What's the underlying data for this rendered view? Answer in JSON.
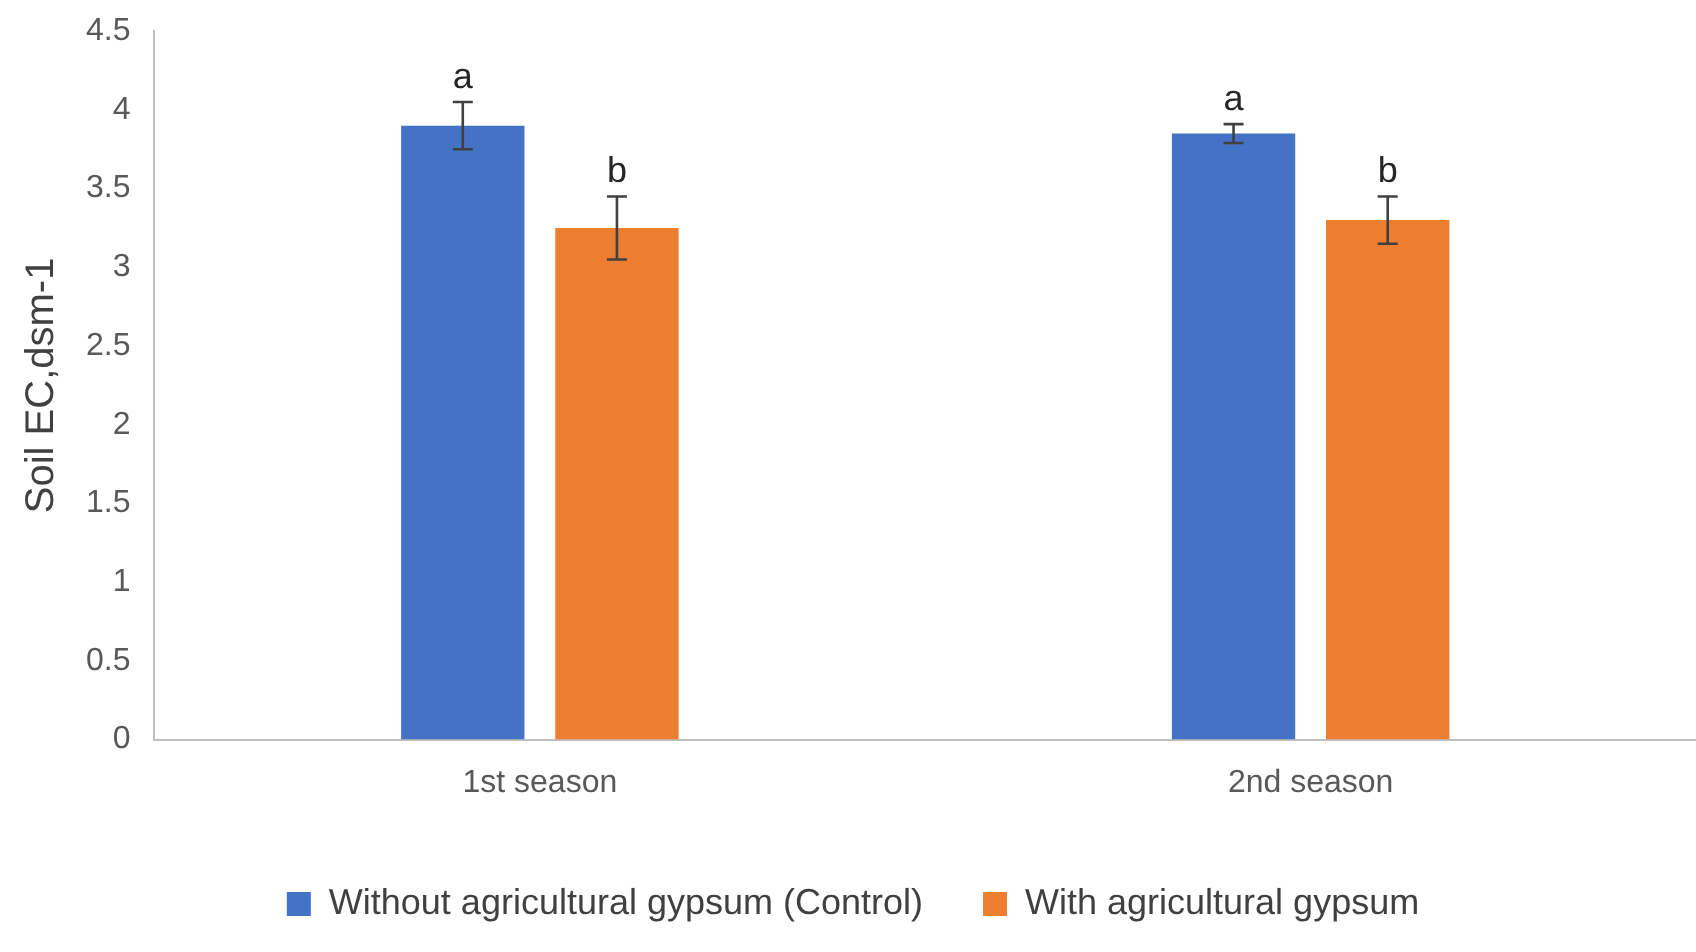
{
  "chart_data": {
    "type": "bar",
    "ylabel": "Soil EC,dsm-1",
    "categories": [
      "1st season",
      "2nd season"
    ],
    "series": [
      {
        "name": "Without agricultural gypsum (Control)",
        "color": "#4472c4",
        "values": [
          3.9,
          3.85
        ],
        "errors": [
          0.15,
          0.06
        ],
        "value_labels": [
          "a",
          "a"
        ]
      },
      {
        "name": "With agricultural gypsum",
        "color": "#ed7d31",
        "values": [
          3.25,
          3.3
        ],
        "errors": [
          0.2,
          0.15
        ],
        "value_labels": [
          "b",
          "b"
        ]
      }
    ],
    "ylim": [
      0,
      4.5
    ],
    "yticks": [
      0,
      0.5,
      1,
      1.5,
      2,
      2.5,
      3,
      3.5,
      4,
      4.5
    ],
    "grid": false,
    "legend": "bottom"
  }
}
